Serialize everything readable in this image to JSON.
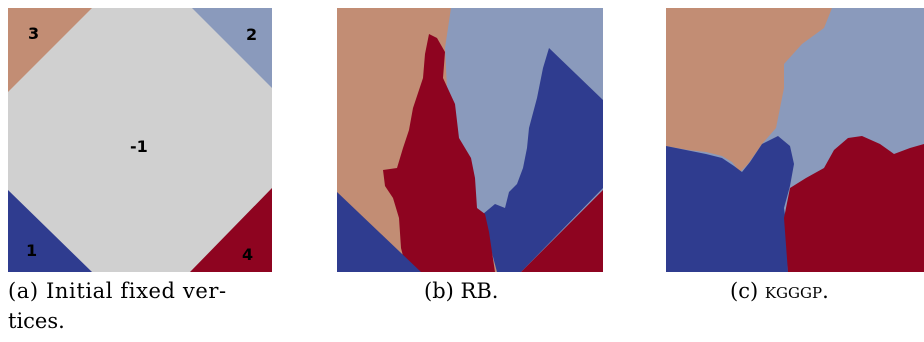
{
  "figure": {
    "panel_a": {
      "vertex_labels": {
        "top_left": "3",
        "top_right": "2",
        "center": "-1",
        "bottom_left": "1",
        "bottom_right": "4"
      },
      "caption_line1": "(a) Initial fixed ver-",
      "caption_line2": "tices."
    },
    "panel_b": {
      "caption": "(b) RB."
    },
    "panel_c": {
      "caption_prefix": "(c) ",
      "caption_method": "kgggp",
      "caption_suffix": "."
    }
  },
  "colors": {
    "gray": "#d0d0d0",
    "tan": "#c28d74",
    "lightblue": "#8a9abc",
    "darkblue": "#2f3c8f",
    "darkred": "#8e0420"
  }
}
